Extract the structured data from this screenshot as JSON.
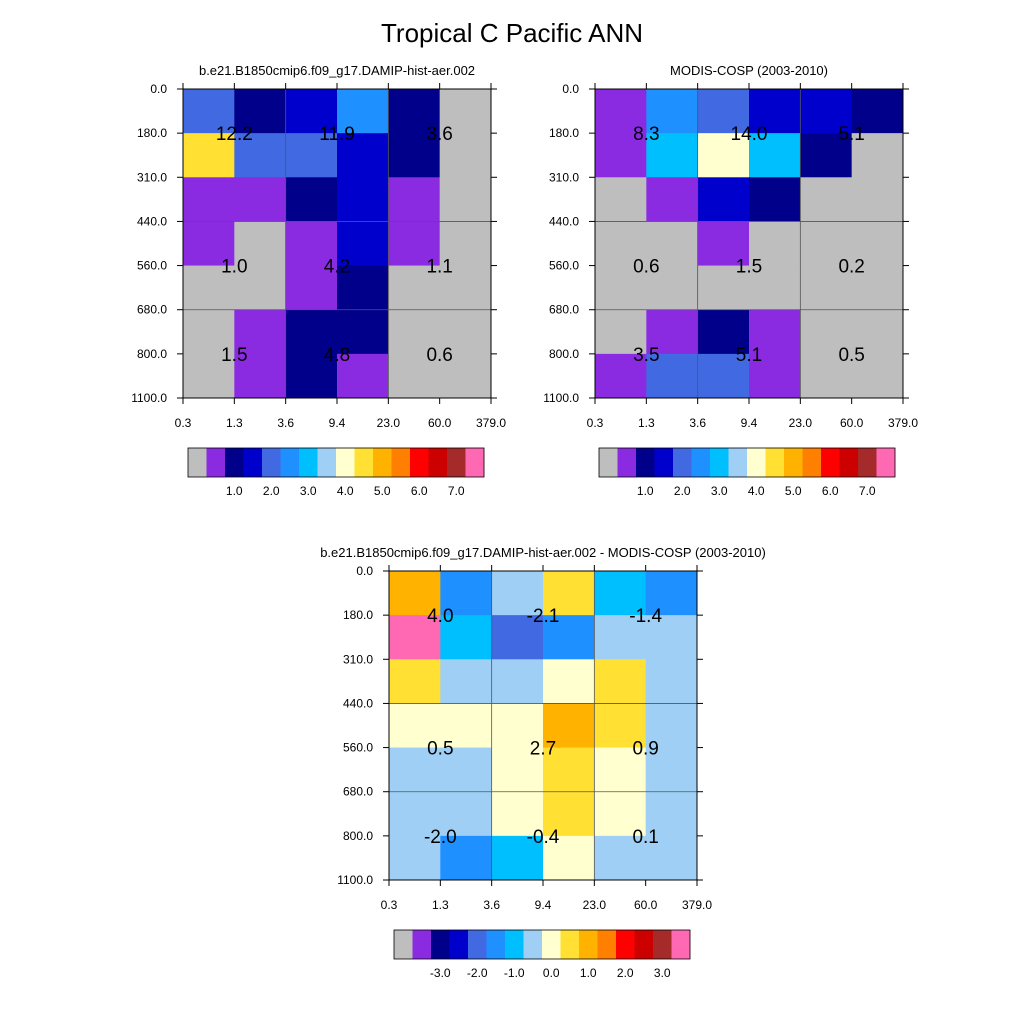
{
  "figure": {
    "title": "Tropical C Pacific ANN"
  },
  "palettes": {
    "abs": [
      "#bebebe",
      "#8a2be2",
      "#00008b",
      "#0000cd",
      "#4169e1",
      "#1e90ff",
      "#00bfff",
      "#a0cff5",
      "#ffffd0",
      "#ffe033",
      "#ffb300",
      "#ff7f00",
      "#ff0000",
      "#cd0000",
      "#a52a2a",
      "#ff69b4"
    ],
    "diff": [
      "#bebebe",
      "#8a2be2",
      "#00008b",
      "#0000cd",
      "#4169e1",
      "#1e90ff",
      "#00bfff",
      "#a0cff5",
      "#ffffd0",
      "#ffe033",
      "#ffb300",
      "#ff7f00",
      "#ff0000",
      "#cd0000",
      "#a52a2a",
      "#ff69b4"
    ]
  },
  "chart_data": [
    {
      "type": "heatmap",
      "title": "b.e21.B1850cmip6.f09_g17.DAMIP-hist-aer.002",
      "x_ticks": [
        "0.3",
        "1.3",
        "3.6",
        "9.4",
        "23.0",
        "60.0",
        "379.0"
      ],
      "y_ticks": [
        "0.0",
        "180.0",
        "310.0",
        "440.0",
        "560.0",
        "680.0",
        "800.0",
        "1100.0"
      ],
      "palette": "abs",
      "cell_color_index": [
        [
          4,
          2,
          3,
          5,
          2,
          0
        ],
        [
          9,
          4,
          4,
          3,
          2,
          0
        ],
        [
          1,
          1,
          2,
          3,
          1,
          0
        ],
        [
          1,
          0,
          1,
          3,
          1,
          0
        ],
        [
          0,
          0,
          1,
          2,
          0,
          0
        ],
        [
          0,
          1,
          2,
          2,
          0,
          0
        ],
        [
          0,
          1,
          2,
          1,
          0,
          0
        ]
      ],
      "labels": [
        {
          "text": "12.2",
          "row": 1,
          "col": 1
        },
        {
          "text": "11.9",
          "row": 1,
          "col": 3
        },
        {
          "text": "3.6",
          "row": 1,
          "col": 5
        },
        {
          "text": "1.0",
          "row": 4,
          "col": 1
        },
        {
          "text": "4.2",
          "row": 4,
          "col": 3
        },
        {
          "text": "1.1",
          "row": 4,
          "col": 5
        },
        {
          "text": "1.5",
          "row": 6,
          "col": 1
        },
        {
          "text": "4.8",
          "row": 6,
          "col": 3
        },
        {
          "text": "0.6",
          "row": 6,
          "col": 5
        }
      ],
      "colorbar_labels": [
        "1.0",
        "2.0",
        "3.0",
        "4.0",
        "5.0",
        "6.0",
        "7.0"
      ]
    },
    {
      "type": "heatmap",
      "title": "MODIS-COSP (2003-2010)",
      "x_ticks": [
        "0.3",
        "1.3",
        "3.6",
        "9.4",
        "23.0",
        "60.0",
        "379.0"
      ],
      "y_ticks": [
        "0.0",
        "180.0",
        "310.0",
        "440.0",
        "560.0",
        "680.0",
        "800.0",
        "1100.0"
      ],
      "palette": "abs",
      "cell_color_index": [
        [
          1,
          5,
          4,
          3,
          3,
          2
        ],
        [
          1,
          6,
          8,
          6,
          2,
          0
        ],
        [
          0,
          1,
          3,
          2,
          0,
          0
        ],
        [
          0,
          0,
          1,
          0,
          0,
          0
        ],
        [
          0,
          0,
          0,
          0,
          0,
          0
        ],
        [
          0,
          1,
          2,
          1,
          0,
          0
        ],
        [
          1,
          4,
          4,
          1,
          0,
          0
        ]
      ],
      "labels": [
        {
          "text": "8.3",
          "row": 1,
          "col": 1
        },
        {
          "text": "14.0",
          "row": 1,
          "col": 3
        },
        {
          "text": "5.1",
          "row": 1,
          "col": 5
        },
        {
          "text": "0.6",
          "row": 4,
          "col": 1
        },
        {
          "text": "1.5",
          "row": 4,
          "col": 3
        },
        {
          "text": "0.2",
          "row": 4,
          "col": 5
        },
        {
          "text": "3.5",
          "row": 6,
          "col": 1
        },
        {
          "text": "5.1",
          "row": 6,
          "col": 3
        },
        {
          "text": "0.5",
          "row": 6,
          "col": 5
        }
      ],
      "colorbar_labels": [
        "1.0",
        "2.0",
        "3.0",
        "4.0",
        "5.0",
        "6.0",
        "7.0"
      ]
    },
    {
      "type": "heatmap",
      "title": "b.e21.B1850cmip6.f09_g17.DAMIP-hist-aer.002 - MODIS-COSP (2003-2010)",
      "x_ticks": [
        "0.3",
        "1.3",
        "3.6",
        "9.4",
        "23.0",
        "60.0",
        "379.0"
      ],
      "y_ticks": [
        "0.0",
        "180.0",
        "310.0",
        "440.0",
        "560.0",
        "680.0",
        "800.0",
        "1100.0"
      ],
      "palette": "diff",
      "cell_color_index": [
        [
          10,
          5,
          7,
          9,
          6,
          5
        ],
        [
          15,
          6,
          4,
          5,
          7,
          7
        ],
        [
          9,
          7,
          7,
          8,
          9,
          7
        ],
        [
          8,
          8,
          8,
          10,
          9,
          7
        ],
        [
          7,
          7,
          8,
          9,
          8,
          7
        ],
        [
          7,
          7,
          8,
          9,
          8,
          7
        ],
        [
          7,
          5,
          6,
          8,
          7,
          7
        ]
      ],
      "labels": [
        {
          "text": "4.0",
          "row": 1,
          "col": 1
        },
        {
          "text": "-2.1",
          "row": 1,
          "col": 3
        },
        {
          "text": "-1.4",
          "row": 1,
          "col": 5
        },
        {
          "text": "0.5",
          "row": 4,
          "col": 1
        },
        {
          "text": "2.7",
          "row": 4,
          "col": 3
        },
        {
          "text": "0.9",
          "row": 4,
          "col": 5
        },
        {
          "text": "-2.0",
          "row": 6,
          "col": 1
        },
        {
          "text": "-0.4",
          "row": 6,
          "col": 3
        },
        {
          "text": "0.1",
          "row": 6,
          "col": 5
        }
      ],
      "colorbar_labels": [
        "-3.0",
        "-2.0",
        "-1.0",
        "0.0",
        "1.0",
        "2.0",
        "3.0"
      ]
    }
  ]
}
